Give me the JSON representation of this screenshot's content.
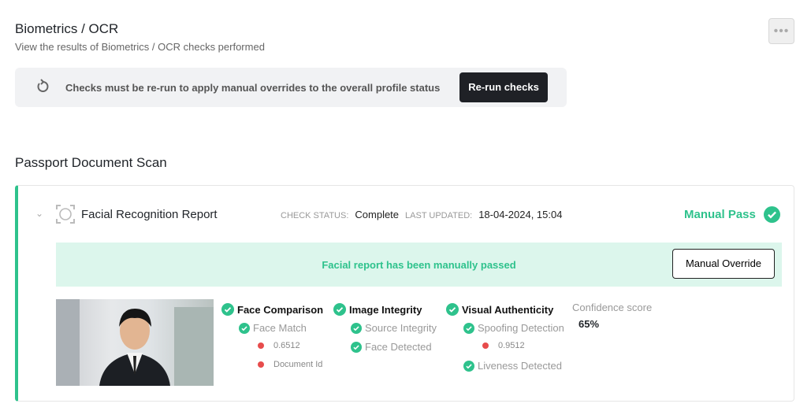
{
  "header": {
    "title": "Biometrics / OCR",
    "subtitle": "View the results of Biometrics / OCR checks performed",
    "more_icon": "ellipsis-icon"
  },
  "banner": {
    "message": "Checks must be re-run to apply manual overrides to the overall profile status",
    "button": "Re-run checks",
    "icon": "refresh-icon"
  },
  "section": {
    "title": "Passport Document Scan"
  },
  "report": {
    "title": "Facial Recognition Report",
    "check_status_label": "CHECK STATUS:",
    "check_status": "Complete",
    "last_updated_label": "LAST UPDATED:",
    "last_updated": "18-04-2024, 15:04",
    "result": "Manual Pass",
    "note": "Facial report has been manually passed",
    "override_button": "Manual Override",
    "colors": {
      "pass": "#2ec28c",
      "fail": "#e74c4c"
    },
    "groups": [
      {
        "title": "Face Comparison",
        "status": "pass",
        "items": [
          {
            "label": "Face Match",
            "status": "pass"
          },
          {
            "label": "0.6512",
            "status": "fail"
          },
          {
            "label": "Document Id",
            "status": "fail"
          }
        ]
      },
      {
        "title": "Image Integrity",
        "status": "pass",
        "items": [
          {
            "label": "Source Integrity",
            "status": "pass"
          },
          {
            "label": "Face Detected",
            "status": "pass"
          }
        ]
      },
      {
        "title": "Visual Authenticity",
        "status": "pass",
        "items": [
          {
            "label": "Spoofing Detection",
            "status": "pass"
          },
          {
            "label": "0.9512",
            "status": "fail"
          },
          {
            "label": "Liveness Detected",
            "status": "pass"
          }
        ]
      }
    ],
    "confidence_label": "Confidence score",
    "confidence": "65%"
  }
}
